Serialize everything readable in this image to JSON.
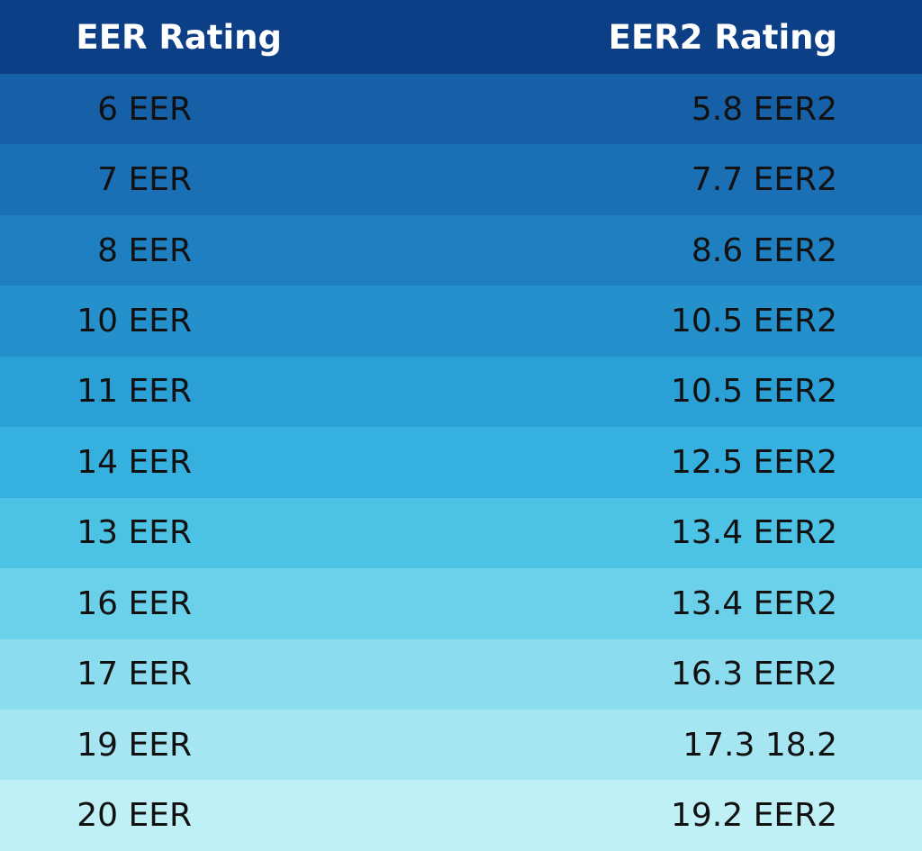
{
  "table": {
    "header": [
      "EER Rating",
      "EER2 Rating"
    ],
    "rows": [
      [
        "6 EER",
        "5.8 EER2"
      ],
      [
        "7 EER",
        "7.7 EER2"
      ],
      [
        "8 EER",
        "8.6 EER2"
      ],
      [
        "10 EER",
        "10.5 EER2"
      ],
      [
        "11 EER",
        "10.5 EER2"
      ],
      [
        "14 EER",
        "12.5 EER2"
      ],
      [
        "13 EER",
        "13.4 EER2"
      ],
      [
        "16 EER",
        "13.4 EER2"
      ],
      [
        "17 EER",
        "16.3 EER2"
      ],
      [
        "19 EER",
        "17.3 18.2"
      ],
      [
        "20 EER",
        "19.2 EER2"
      ]
    ]
  }
}
